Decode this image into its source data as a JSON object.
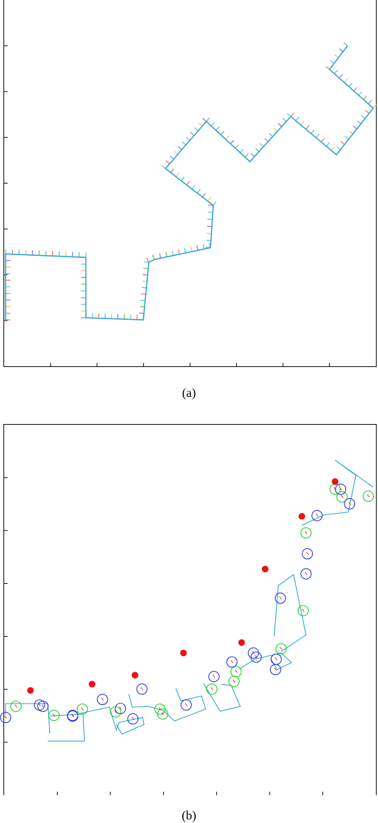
{
  "captions": {
    "a": "(a)",
    "b": "(b)"
  },
  "colors": {
    "path": "#2aa3cf",
    "tick_colors": [
      "#e8735a",
      "#4fb6e8",
      "#f2c24a",
      "#8a6fd0",
      "#6cc24a",
      "#58c9d9"
    ],
    "circle_green": "#22cc22",
    "circle_blue": "#2233dd",
    "dot_red": "#ee1111"
  },
  "chart_data": [
    {
      "type": "line",
      "title": "",
      "xlabel": "",
      "ylabel": "",
      "xlim": [
        0,
        537
      ],
      "ylim": [
        0,
        528
      ],
      "y_axis": "down",
      "grid": false,
      "ticks": {
        "x_count": 8,
        "y_count": 8
      },
      "series": [
        {
          "x": [
            2,
            2,
            118,
            118,
            201,
            209,
            217,
            298,
            302,
            233,
            292,
            355,
            414,
            480,
            533,
            470,
            496
          ],
          "y": [
            461,
            366,
            371,
            458,
            461,
            378,
            374,
            357,
            296,
            243,
            175,
            233,
            168,
            223,
            156,
            100,
            66
          ]
        }
      ]
    },
    {
      "type": "scatter",
      "title": "",
      "xlabel": "",
      "ylabel": "",
      "xlim": [
        0,
        537
      ],
      "ylim": [
        0,
        534
      ],
      "y_axis": "down",
      "grid": false,
      "ticks": {
        "x_count": 7,
        "y_count": 7
      },
      "series": [
        {
          "kind": "path",
          "segments": [
            [
              [
                2,
                418
              ],
              [
                2,
                402
              ],
              [
                63,
                402
              ],
              [
                66,
                445
              ]
            ],
            [
              [
                63,
                456
              ],
              [
                116,
                456
              ],
              [
                114,
                417
              ],
              [
                66,
                420
              ]
            ],
            [
              [
                110,
                416
              ],
              [
                152,
                407
              ],
              [
                162,
                440
              ],
              [
                166,
                429
              ],
              [
                200,
                422
              ],
              [
                202,
                432
              ],
              [
                170,
                446
              ],
              [
                162,
                432
              ]
            ],
            [
              [
                180,
                388
              ],
              [
                185,
                407
              ],
              [
                209,
                406
              ],
              [
                230,
                412
              ],
              [
                246,
                427
              ],
              [
                291,
                410
              ],
              [
                285,
                391
              ],
              [
                255,
                398
              ],
              [
                248,
                380
              ]
            ],
            [
              [
                288,
                373
              ],
              [
                312,
                413
              ],
              [
                341,
                406
              ],
              [
                328,
                376
              ],
              [
                314,
                374
              ]
            ],
            [
              [
                340,
                352
              ],
              [
                362,
                338
              ],
              [
                400,
                329
              ],
              [
                415,
                343
              ],
              [
                394,
                353
              ],
              [
                385,
                337
              ]
            ],
            [
              [
                390,
                305
              ],
              [
                396,
                232
              ],
              [
                418,
                216
              ],
              [
                436,
                303
              ],
              [
                400,
                327
              ]
            ],
            [
              [
                430,
                145
              ],
              [
                462,
                130
              ],
              [
                497,
                126
              ],
              [
                508,
                73
              ],
              [
                478,
                51
              ],
              [
                533,
                90
              ]
            ]
          ]
        },
        {
          "name": "",
          "marker": "green-circle",
          "x": [
            17,
            72,
            113,
            161,
            225,
            229,
            300,
            332,
            335,
            400,
            432,
            436,
            488,
            478,
            526
          ],
          "y": [
            406,
            419,
            410,
            414,
            410,
            417,
            381,
            370,
            356,
            323,
            268,
            156,
            104,
            93,
            103
          ]
        },
        {
          "name": "",
          "marker": "blue-circle",
          "x": [
            2,
            51,
            56,
            99,
            99,
            142,
            168,
            186,
            199,
            263,
            303,
            329,
            360,
            364,
            392,
            393,
            399,
            436,
            438,
            452,
            486,
            499
          ],
          "y": [
            422,
            404,
            406,
            420,
            419,
            396,
            409,
            424,
            381,
            404,
            363,
            342,
            329,
            335,
            353,
            338,
            250,
            215,
            186,
            131,
            93,
            114
          ]
        },
        {
          "name": "",
          "marker": "red-dot",
          "x": [
            38,
            127,
            189,
            259,
            343,
            377,
            430,
            478
          ],
          "y": [
            383,
            374,
            361,
            329,
            314,
            208,
            132,
            82
          ]
        }
      ]
    }
  ]
}
